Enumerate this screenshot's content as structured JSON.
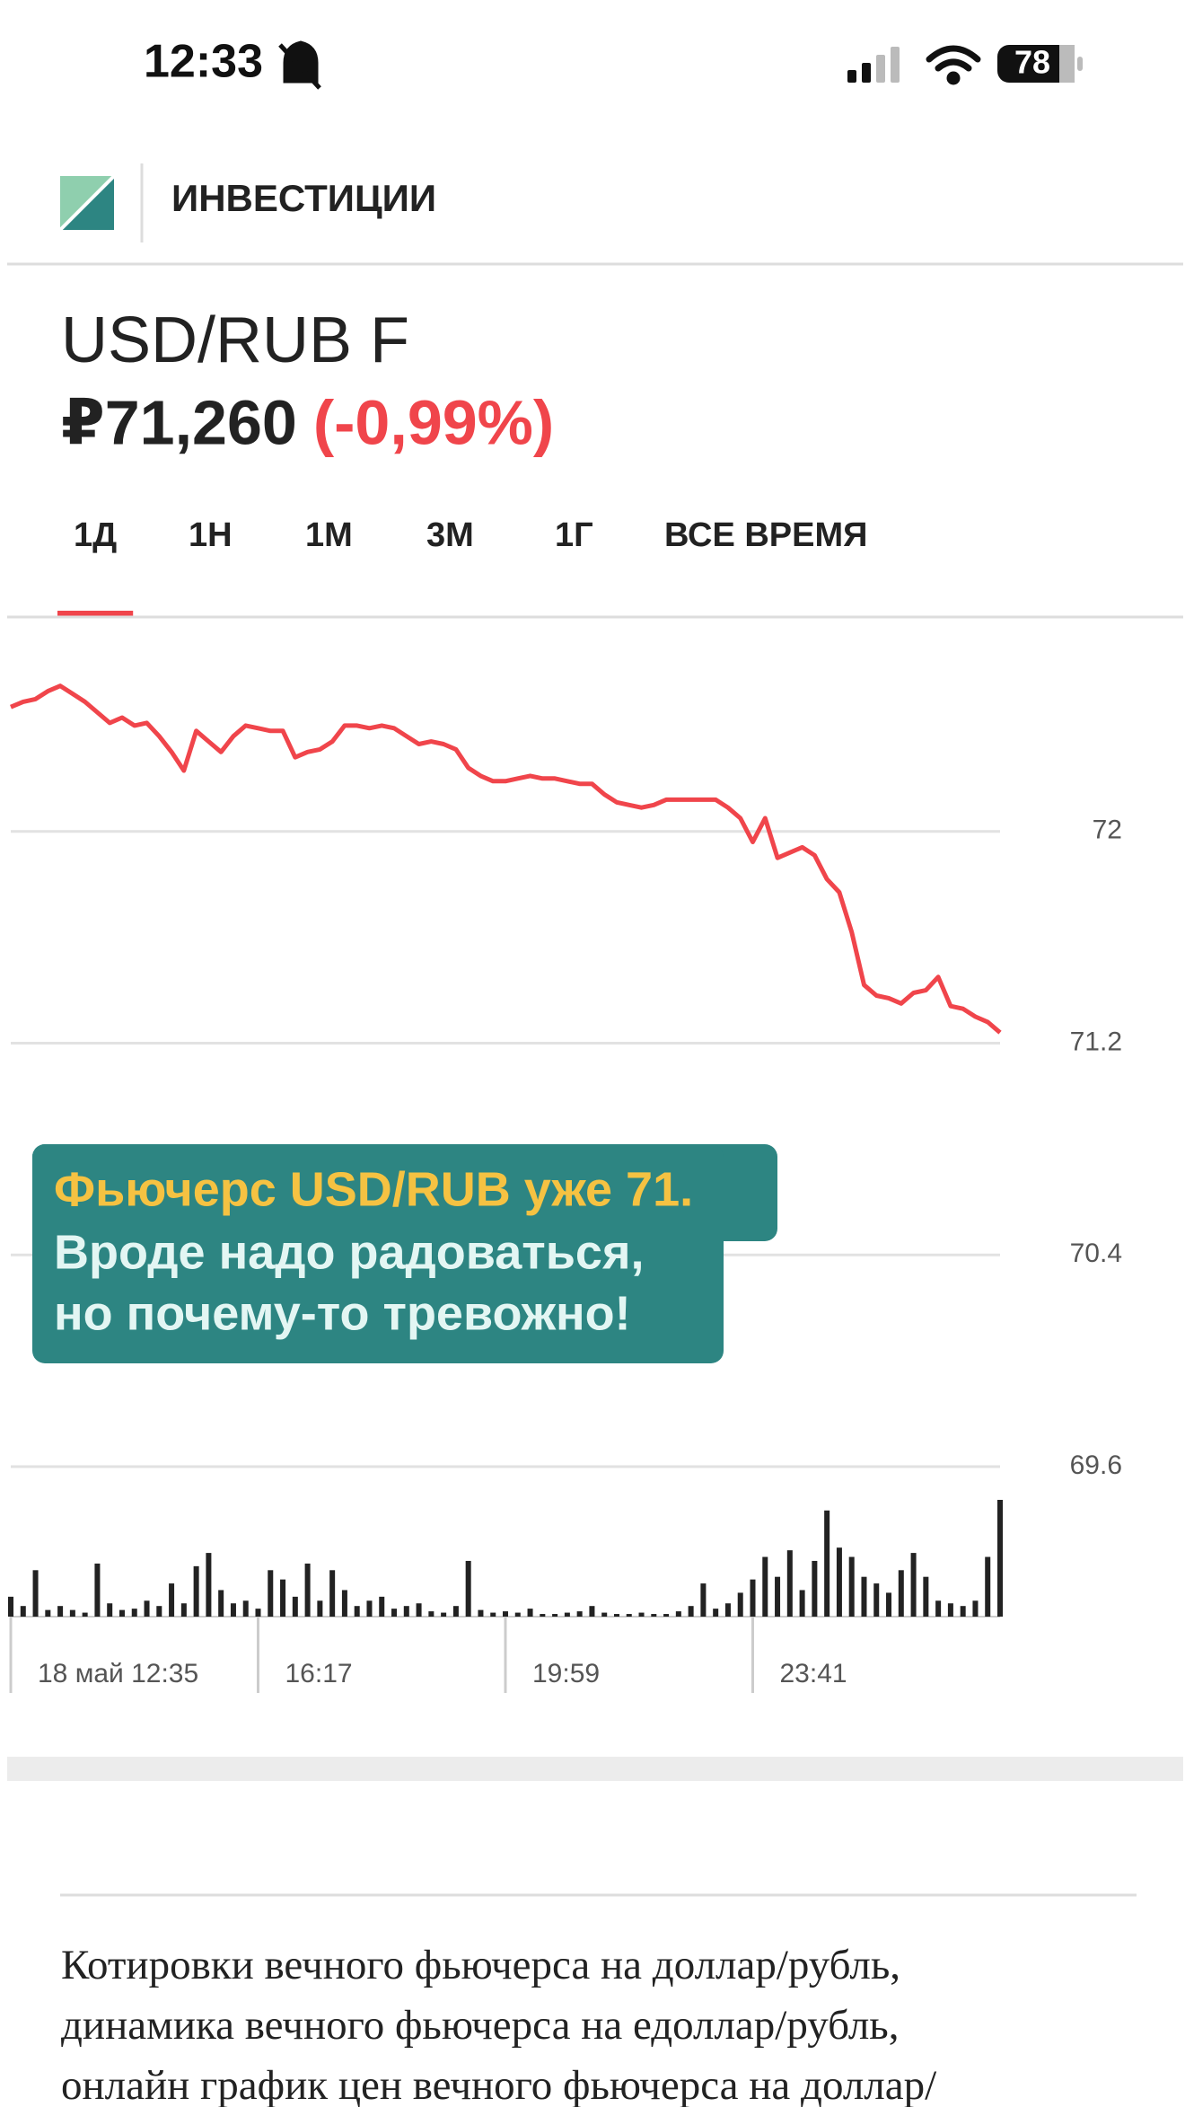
{
  "status_bar": {
    "time": "12:33",
    "battery": "78"
  },
  "header": {
    "title": "ИНВЕСТИЦИИ"
  },
  "instrument": {
    "name": "USD/RUB F",
    "price": "₽71,260",
    "change": "(-0,99%)"
  },
  "tabs": [
    "1Д",
    "1Н",
    "1М",
    "3М",
    "1Г",
    "ВСЕ ВРЕМЯ"
  ],
  "active_tab": 0,
  "chart_data": {
    "type": "line",
    "series": [
      {
        "color": "#f0454b",
        "values": [
          72.47,
          72.49,
          72.5,
          72.53,
          72.55,
          72.52,
          72.49,
          72.45,
          72.41,
          72.43,
          72.4,
          72.41,
          72.36,
          72.3,
          72.23,
          72.38,
          72.34,
          72.3,
          72.36,
          72.4,
          72.39,
          72.38,
          72.38,
          72.28,
          72.3,
          72.31,
          72.34,
          72.4,
          72.4,
          72.39,
          72.4,
          72.39,
          72.36,
          72.33,
          72.34,
          72.33,
          72.31,
          72.24,
          72.21,
          72.19,
          72.19,
          72.2,
          72.21,
          72.2,
          72.2,
          72.19,
          72.18,
          72.18,
          72.14,
          72.11,
          72.1,
          72.09,
          72.1,
          72.12,
          72.12,
          72.12,
          72.12,
          72.12,
          72.09,
          72.05,
          71.96,
          72.05,
          71.9,
          71.92,
          71.94,
          71.91,
          71.82,
          71.77,
          71.62,
          71.42,
          71.38,
          71.37,
          71.35,
          71.39,
          71.4,
          71.45,
          71.34,
          71.33,
          71.3,
          71.28,
          71.24
        ]
      }
    ],
    "volume": {
      "color": "#222222",
      "values": [
        15,
        8,
        35,
        5,
        8,
        5,
        3,
        40,
        10,
        5,
        6,
        12,
        8,
        25,
        10,
        38,
        48,
        20,
        10,
        12,
        6,
        35,
        28,
        15,
        40,
        12,
        35,
        20,
        8,
        12,
        15,
        6,
        8,
        10,
        4,
        3,
        8,
        42,
        5,
        3,
        4,
        3,
        6,
        2,
        2,
        3,
        4,
        8,
        3,
        2,
        2,
        3,
        2,
        2,
        4,
        8,
        25,
        6,
        10,
        18,
        28,
        45,
        30,
        50,
        20,
        42,
        80,
        52,
        45,
        30,
        25,
        18,
        35,
        48,
        30,
        12,
        10,
        8,
        12,
        45,
        88
      ]
    },
    "ylim": [
      69.6,
      72.8
    ],
    "yticks": [
      69.6,
      70.4,
      71.2,
      72
    ],
    "xlim": [
      0,
      80
    ],
    "xticks": [
      {
        "value": 0,
        "label": "18 май 12:35"
      },
      {
        "value": 20,
        "label": "16:17"
      },
      {
        "value": 40,
        "label": "19:59"
      },
      {
        "value": 60,
        "label": "23:41"
      }
    ],
    "grid": true,
    "annotation": [
      "Фьючерс USD/RUB уже 71.",
      "Вроде надо радоваться,",
      "но почему-то тревожно!"
    ]
  },
  "description": {
    "lines": [
      "Котировки вечного фьючерса на доллар/рубль,",
      "динамика вечного фьючерса на едоллар/рубль,",
      "онлайн график цен вечного фьючерса на доллар/"
    ]
  }
}
